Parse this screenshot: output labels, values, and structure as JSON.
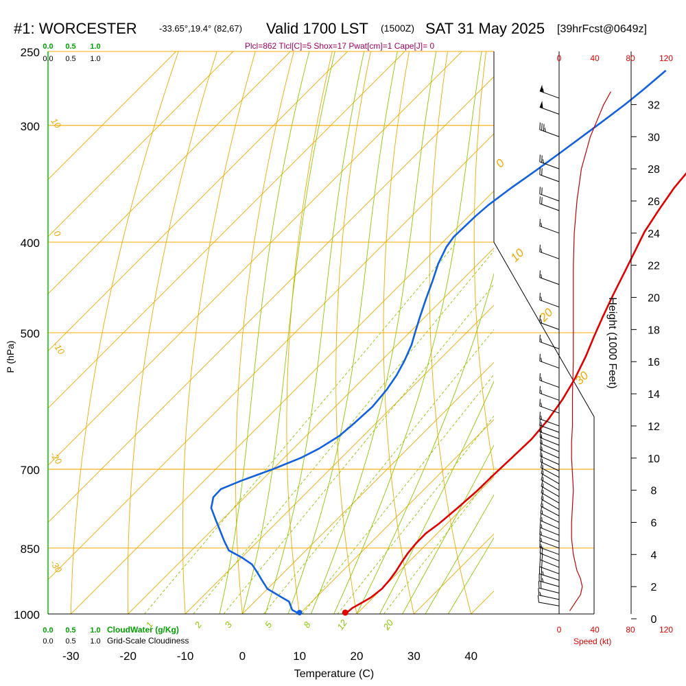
{
  "header": {
    "station": "#1: WORCESTER",
    "coords": "-33.65°,19.4° (82,67)",
    "valid": "Valid 1700 LST",
    "utc": "(1500Z)",
    "date": "SAT 31 May 2025",
    "forecast": "[39hrFcst@0649z]",
    "indices": "Plcl=862 Tlcl[C]=5 Shox=17 Pwat[cm]=1 Cape[J]= 0"
  },
  "colors": {
    "isobar": "#f0a800",
    "skew": "#f0a800",
    "dry_adiabat": "#8cc800",
    "moist_adiabat": "#8cc800",
    "mixing_ratio": "#8cc800",
    "temperature": "#e00000",
    "dewpoint": "#1060e0",
    "wind_speed": "#c00000",
    "cloud": "#00a000",
    "text": "#000000",
    "accent": "#a00060"
  },
  "axes": {
    "xlabel": "Temperature (C)",
    "ylabel": "P (hPa)",
    "y2label": "Height (1000 Feet)",
    "x_ticks": [
      "-30",
      "-20",
      "-10",
      "0",
      "10",
      "20",
      "30",
      "40"
    ],
    "x_range": [
      -34,
      44
    ],
    "p_range": [
      1000,
      250
    ],
    "p_ticks": [
      "250",
      "300",
      "400",
      "500",
      "700",
      "850",
      "1000"
    ],
    "height_ticks": [
      "0",
      "2",
      "4",
      "6",
      "8",
      "10",
      "12",
      "14",
      "16",
      "18",
      "20",
      "22",
      "24",
      "26",
      "28",
      "30",
      "32"
    ]
  },
  "cloud_scale": {
    "top_green": [
      "0.0",
      "0.5",
      "1.0"
    ],
    "top_black": [
      "0.0",
      "0.5",
      "1.0"
    ],
    "bottom_green": [
      "0.0",
      "0.5",
      "1.0"
    ],
    "bottom_green_label": "CloudWater (g/Kg)",
    "bottom_black": [
      "0.0",
      "0.5",
      "1.0"
    ],
    "bottom_black_label": "Grid-Scale Cloudiness"
  },
  "speed_axis": {
    "ticks": [
      "0",
      "40",
      "80",
      "120"
    ],
    "label": "Speed (kt)"
  },
  "skew_labels": [
    "10",
    "0",
    "-10",
    "-20",
    "-30",
    "0",
    "10",
    "20",
    "30"
  ],
  "mixing_ratio_labels": [
    "1",
    "2",
    "3",
    "5",
    "8",
    "12",
    "20"
  ],
  "chart_data": {
    "type": "line",
    "series": [
      {
        "name": "temperature",
        "points": [
          [
            18.0,
            1000
          ],
          [
            18.2,
            985
          ],
          [
            18.8,
            975
          ],
          [
            19.6,
            960
          ],
          [
            20.0,
            940
          ],
          [
            19.8,
            920
          ],
          [
            19.4,
            900
          ],
          [
            18.8,
            880
          ],
          [
            18.3,
            860
          ],
          [
            18.0,
            840
          ],
          [
            18.0,
            820
          ],
          [
            18.6,
            800
          ],
          [
            19.1,
            770
          ],
          [
            19.5,
            740
          ],
          [
            19.6,
            710
          ],
          [
            19.8,
            680
          ],
          [
            20.0,
            650
          ],
          [
            19.5,
            620
          ],
          [
            18.5,
            590
          ],
          [
            17.0,
            560
          ],
          [
            15.0,
            530
          ],
          [
            13.0,
            505
          ],
          [
            11.0,
            480
          ],
          [
            9.0,
            455
          ],
          [
            7.0,
            430
          ],
          [
            5.3,
            410
          ],
          [
            3.5,
            390
          ],
          [
            2.2,
            370
          ],
          [
            1.0,
            350
          ],
          [
            0.3,
            330
          ],
          [
            -0.5,
            310
          ],
          [
            -1.3,
            290
          ],
          [
            -2.0,
            275
          ],
          [
            -2.6,
            262
          ]
        ]
      },
      {
        "name": "dewpoint",
        "points": [
          [
            10.0,
            1000
          ],
          [
            8.0,
            990
          ],
          [
            6.0,
            970
          ],
          [
            3.0,
            955
          ],
          [
            0.0,
            940
          ],
          [
            -2.5,
            920
          ],
          [
            -5.0,
            900
          ],
          [
            -7.0,
            885
          ],
          [
            -10.0,
            870
          ],
          [
            -13.5,
            855
          ],
          [
            -16.0,
            835
          ],
          [
            -19.0,
            810
          ],
          [
            -21.5,
            790
          ],
          [
            -24.0,
            770
          ],
          [
            -25.5,
            750
          ],
          [
            -25.6,
            735
          ],
          [
            -23.5,
            720
          ],
          [
            -20.0,
            700
          ],
          [
            -17.0,
            680
          ],
          [
            -15.5,
            665
          ],
          [
            -14.2,
            645
          ],
          [
            -13.8,
            625
          ],
          [
            -13.5,
            600
          ],
          [
            -14.0,
            575
          ],
          [
            -14.8,
            555
          ],
          [
            -16.0,
            535
          ],
          [
            -17.5,
            515
          ],
          [
            -19.0,
            500
          ],
          [
            -21.0,
            480
          ],
          [
            -23.0,
            460
          ],
          [
            -25.0,
            440
          ],
          [
            -27.0,
            422
          ],
          [
            -28.5,
            405
          ],
          [
            -29.0,
            395
          ],
          [
            -28.8,
            375
          ],
          [
            -28.5,
            365
          ],
          [
            -27.5,
            350
          ],
          [
            -26.2,
            335
          ],
          [
            -25.0,
            320
          ],
          [
            -23.8,
            305
          ],
          [
            -23.0,
            295
          ],
          [
            -22.2,
            285
          ],
          [
            -21.6,
            275
          ],
          [
            -21.0,
            262
          ]
        ]
      }
    ],
    "surface": {
      "temperature": 18.0,
      "dewpoint": 10.0,
      "pressure": 1000
    },
    "wind_speed_profile": {
      "height_kft": [
        0.5,
        1,
        1.5,
        2,
        2.5,
        3,
        4,
        5,
        6,
        7,
        8,
        9,
        10,
        11,
        12,
        14,
        16,
        18,
        20,
        22,
        24,
        26,
        28,
        30,
        32,
        32.8
      ],
      "speed_kt": [
        12,
        18,
        24,
        26,
        24,
        20,
        16,
        14,
        14,
        15,
        16,
        15,
        14,
        14,
        15,
        15,
        16,
        16,
        16,
        16,
        17,
        20,
        25,
        35,
        50,
        58
      ]
    },
    "wind_barbs": {
      "height_kft": [
        0.8,
        1.2,
        1.6,
        2.0,
        2.4,
        2.8,
        3.2,
        3.6,
        4.0,
        4.4,
        4.8,
        5.2,
        5.6,
        6.0,
        6.4,
        6.8,
        7.2,
        7.6,
        8.0,
        8.4,
        8.8,
        9.2,
        9.6,
        10.0,
        10.4,
        10.8,
        11.2,
        11.6,
        12.0,
        12.8,
        13.6,
        14.4,
        15.6,
        16.8,
        18.0,
        19.4,
        20.8,
        22.4,
        24.0,
        25.4,
        26.0,
        27.2,
        28.0,
        30.0,
        31.4,
        32.4
      ],
      "direction_deg": [
        280,
        282,
        284,
        286,
        288,
        290,
        292,
        292,
        290,
        290,
        290,
        292,
        294,
        296,
        298,
        300,
        300,
        300,
        300,
        300,
        298,
        296,
        294,
        294,
        294,
        292,
        290,
        290,
        290,
        290,
        290,
        290,
        290,
        290,
        290,
        290,
        290,
        290,
        290,
        290,
        290,
        290,
        290,
        290,
        290,
        290
      ],
      "speed_kt": [
        12,
        16,
        20,
        24,
        24,
        22,
        20,
        18,
        16,
        15,
        14,
        14,
        14,
        14,
        15,
        15,
        16,
        16,
        16,
        15,
        15,
        14,
        14,
        14,
        15,
        15,
        15,
        15,
        15,
        15,
        15,
        16,
        16,
        16,
        16,
        16,
        16,
        16,
        17,
        18,
        20,
        22,
        25,
        35,
        50,
        56
      ]
    }
  }
}
